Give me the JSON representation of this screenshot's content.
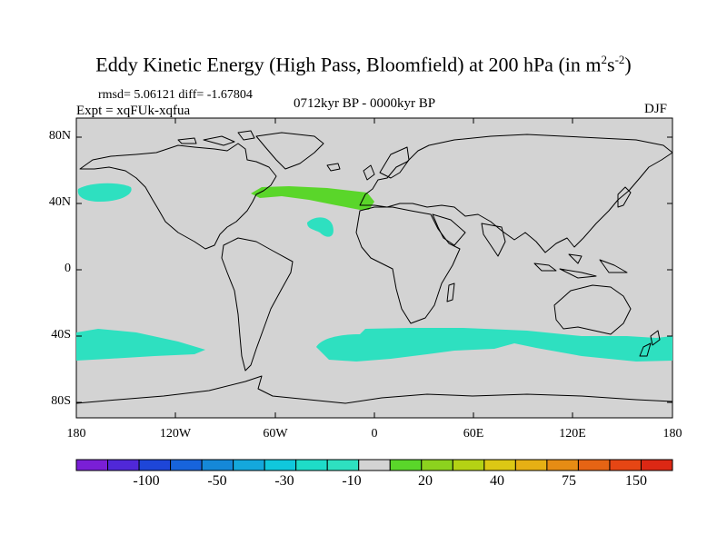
{
  "title": {
    "main": "Eddy Kinetic Energy (High Pass, Bloomfield) at 200 hPa (in m",
    "sup1": "2",
    "mid": "s",
    "sup2": "-2",
    "end": ")"
  },
  "stats": "rmsd= 5.06121  diff= -1.67804",
  "experiment": "Expt = xqFUk-xqfua",
  "period": "0712kyr BP - 0000kyr BP",
  "season": "DJF",
  "map": {
    "background_color": "#d3d3d3",
    "coast_color": "#000000",
    "y_ticks": [
      "80N",
      "40N",
      "0",
      "40S",
      "80S"
    ],
    "x_ticks": [
      "180",
      "120W",
      "60W",
      "0",
      "60E",
      "120E",
      "180"
    ]
  },
  "anomalies": [
    {
      "name": "north-pacific",
      "class": "-10",
      "color": "#2ee0c0"
    },
    {
      "name": "north-atlantic-jet",
      "class": "20",
      "color": "#5ad62a"
    },
    {
      "name": "subtropical-atlantic",
      "class": "-10",
      "color": "#2ee0c0"
    },
    {
      "name": "south-pacific",
      "class": "-10",
      "color": "#2ee0c0"
    },
    {
      "name": "southern-ocean",
      "class": "-10",
      "color": "#2ee0c0"
    }
  ],
  "colorbar": {
    "colors": [
      "#7a1fd6",
      "#5028d8",
      "#1e46d8",
      "#1764dc",
      "#1588d8",
      "#14a8dc",
      "#10c8dc",
      "#1edcc8",
      "#2ee0c0",
      "#d3d3d3",
      "#5ad62a",
      "#8cd21e",
      "#b4d214",
      "#dcc814",
      "#e6b014",
      "#e68c14",
      "#e66414",
      "#e64614",
      "#dc2814"
    ],
    "labels": [
      "-100",
      "-50",
      "-30",
      "-10",
      "20",
      "40",
      "75",
      "150"
    ]
  }
}
